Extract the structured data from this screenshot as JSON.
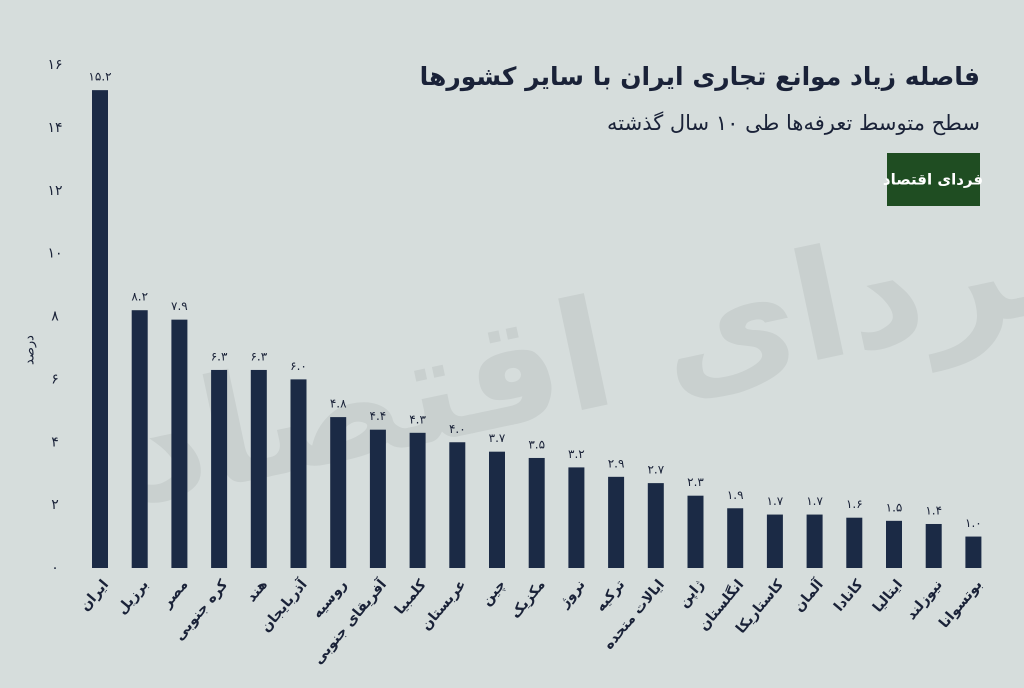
{
  "chart_data": {
    "type": "bar",
    "title": "فاصله زیاد موانع تجاری ایران با سایر کشورها",
    "subtitle": "سطح متوسط تعرفه‌ها طی ۱۰ سال گذشته",
    "logo": "فردای اقتصاد",
    "watermark": "فردای اقتصاد",
    "y_label": "درصد",
    "categories": [
      "ایران",
      "برزیل",
      "مصر",
      "کره جنوبی",
      "هند",
      "آذربایجان",
      "روسیه",
      "آفریقای جنوبی",
      "کلمبیا",
      "عربستان",
      "چین",
      "مکزیک",
      "نروژ",
      "ترکیه",
      "ایالات متحده",
      "ژاپن",
      "انگلستان",
      "کاستاریکا",
      "آلمان",
      "کانادا",
      "ایتالیا",
      "نیوزلند",
      "بوتسوانا"
    ],
    "values": [
      15.2,
      8.2,
      7.9,
      6.3,
      6.3,
      6.0,
      4.8,
      4.4,
      4.3,
      4.0,
      3.7,
      3.5,
      3.2,
      2.9,
      2.7,
      2.3,
      1.9,
      1.7,
      1.7,
      1.6,
      1.5,
      1.4,
      1.0
    ],
    "value_labels": [
      "۱۵.۲",
      "۸.۲",
      "۷.۹",
      "۶.۳",
      "۶.۳",
      "۶.۰",
      "۴.۸",
      "۴.۴",
      "۴.۳",
      "۴.۰",
      "۳.۷",
      "۳.۵",
      "۳.۲",
      "۲.۹",
      "۲.۷",
      "۲.۳",
      "۱.۹",
      "۱.۷",
      "۱.۷",
      "۱.۶",
      "۱.۵",
      "۱.۴",
      "۱.۰"
    ],
    "color": "#1b2a45",
    "ylim": [
      0,
      16
    ],
    "yticks": [
      {
        "value": 0,
        "label": "۰"
      },
      {
        "value": 2,
        "label": "۲"
      },
      {
        "value": 4,
        "label": "۴"
      },
      {
        "value": 6,
        "label": "۶"
      },
      {
        "value": 8,
        "label": "۸"
      },
      {
        "value": 10,
        "label": "۱۰"
      },
      {
        "value": 12,
        "label": "۱۲"
      },
      {
        "value": 14,
        "label": "۱۴"
      },
      {
        "value": 16,
        "label": "۱۶"
      }
    ],
    "grid": false
  }
}
